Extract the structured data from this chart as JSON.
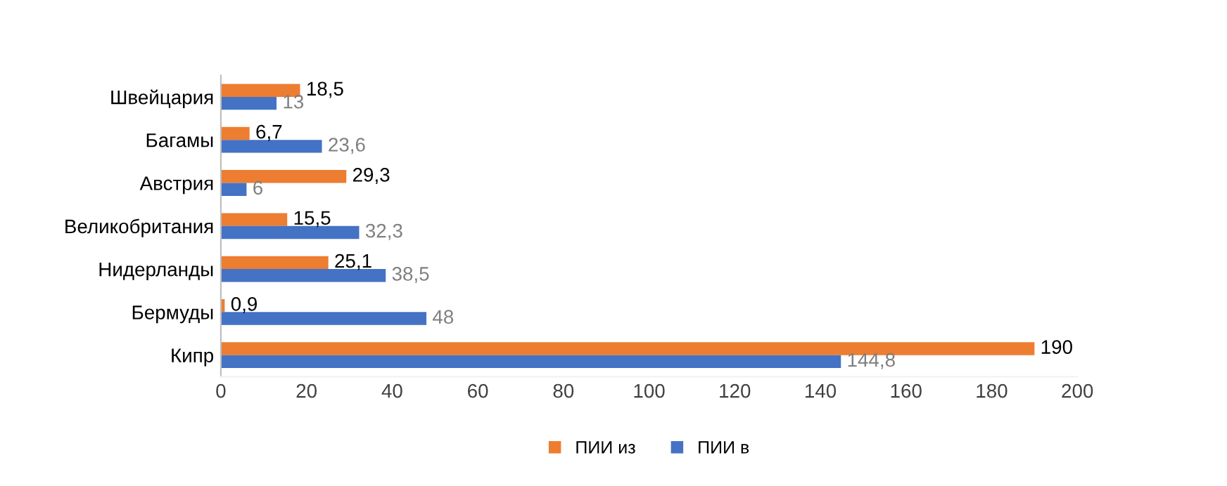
{
  "chart_data": {
    "type": "bar",
    "orientation": "horizontal",
    "categories": [
      "Швейцария",
      "Багамы",
      "Австрия",
      "Великобритания",
      "Нидерланды",
      "Бермуды",
      "Кипр"
    ],
    "series": [
      {
        "name": "ПИИ из",
        "color": "#ed7d31",
        "values": [
          18.5,
          6.7,
          29.3,
          15.5,
          25.1,
          0.9,
          190
        ],
        "value_labels": [
          "18,5",
          "6,7",
          "29,3",
          "15,5",
          "25,1",
          "0,9",
          "190"
        ]
      },
      {
        "name": "ПИИ в",
        "color": "#4472c4",
        "values": [
          13,
          23.6,
          6,
          32.3,
          38.5,
          48,
          144.8
        ],
        "value_labels": [
          "13",
          "23,6",
          "6",
          "32,3",
          "38,5",
          "48",
          "144,8"
        ]
      }
    ],
    "xlim": [
      0,
      200
    ],
    "xticks": [
      0,
      20,
      40,
      60,
      80,
      100,
      120,
      140,
      160,
      180,
      200
    ],
    "grid": false,
    "legend": "bottom"
  }
}
